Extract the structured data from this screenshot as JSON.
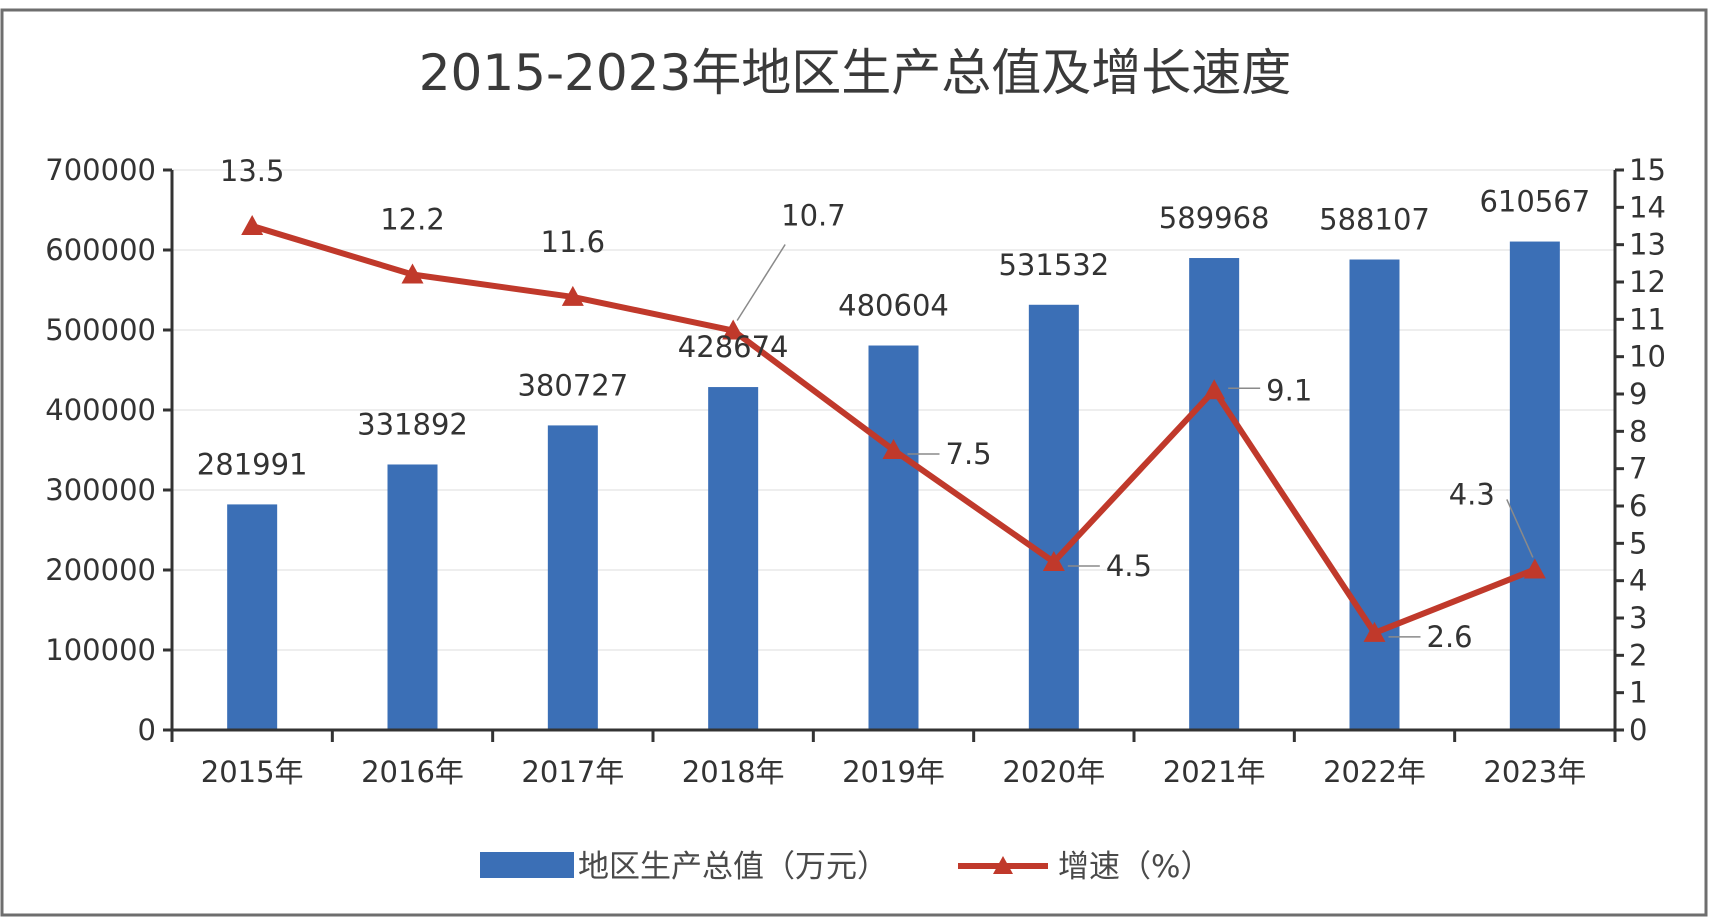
{
  "chart_data": {
    "type": "bar",
    "title": "2015-2023年地区生产总值及增长速度",
    "categories": [
      "2015年",
      "2016年",
      "2017年",
      "2018年",
      "2019年",
      "2020年",
      "2021年",
      "2022年",
      "2023年"
    ],
    "series": [
      {
        "name": "地区生产总值（万元）",
        "type": "bar",
        "axis": "left",
        "values": [
          281991,
          331892,
          380727,
          428674,
          480604,
          531532,
          589968,
          588107,
          610567
        ],
        "color": "#3b6fb6"
      },
      {
        "name": "增速（%）",
        "type": "line",
        "axis": "right",
        "marker": "triangle",
        "values": [
          13.5,
          12.2,
          11.6,
          10.7,
          7.5,
          4.5,
          9.1,
          2.6,
          4.3
        ],
        "color": "#c0392b"
      }
    ],
    "y_left": {
      "min": 0,
      "max": 700000,
      "ticks": [
        0,
        100000,
        200000,
        300000,
        400000,
        500000,
        600000,
        700000
      ]
    },
    "y_right": {
      "min": 0,
      "max": 15,
      "ticks": [
        0,
        1,
        2,
        3,
        4,
        5,
        6,
        7,
        8,
        9,
        10,
        11,
        12,
        13,
        14,
        15
      ]
    },
    "grid": true,
    "legend_position": "bottom"
  }
}
